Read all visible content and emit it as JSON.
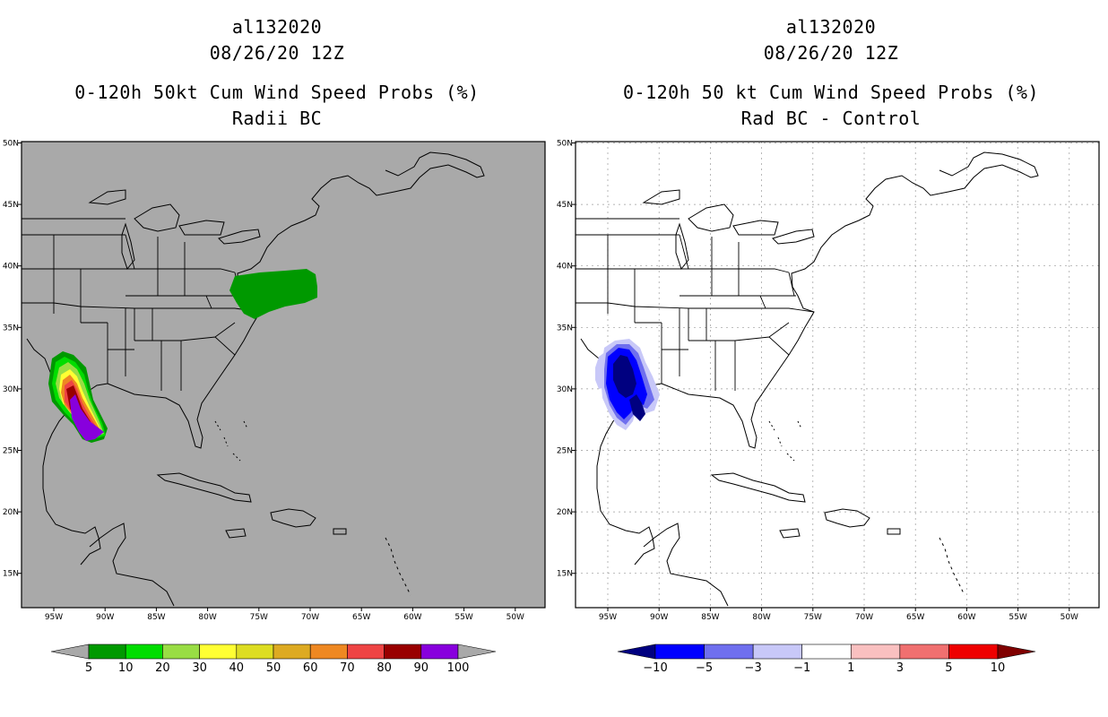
{
  "panels": [
    {
      "storm_id": "al132020",
      "datetime": "08/26/20 12Z",
      "product": "0-120h 50kt Cum Wind Speed Probs (%)",
      "subtitle": "Radii BC",
      "map_background": "#a9a9a9",
      "colorbar": {
        "labels": [
          "5",
          "10",
          "20",
          "30",
          "40",
          "50",
          "60",
          "70",
          "80",
          "90",
          "100"
        ],
        "colors": [
          "#009900",
          "#00dd00",
          "#99dd44",
          "#ffff33",
          "#dddd22",
          "#ddaa22",
          "#ee8822",
          "#ee4444",
          "#990000",
          "#8800dd"
        ],
        "under_color": "#a9a9a9",
        "over_color": "#a9a9a9"
      }
    },
    {
      "storm_id": "al132020",
      "datetime": "08/26/20 12Z",
      "product": "0-120h 50 kt Cum Wind Speed Probs (%)",
      "subtitle": "Rad BC - Control",
      "map_background": "#ffffff",
      "colorbar": {
        "labels": [
          "−10",
          "−5",
          "−3",
          "−1",
          "1",
          "3",
          "5",
          "10"
        ],
        "colors": [
          "#0000ff",
          "#6f6fee",
          "#c8c8f8",
          "#ffffff",
          "#f9c0c0",
          "#f07070",
          "#ee0000"
        ],
        "under_color": "#000080",
        "over_color": "#800000"
      }
    }
  ],
  "map_axes": {
    "lat_labels": [
      "50N",
      "45N",
      "40N",
      "35N",
      "30N",
      "25N",
      "20N",
      "15N"
    ],
    "lon_labels": [
      "95W",
      "90W",
      "85W",
      "80W",
      "75W",
      "70W",
      "65W",
      "60W",
      "55W",
      "50W"
    ]
  }
}
